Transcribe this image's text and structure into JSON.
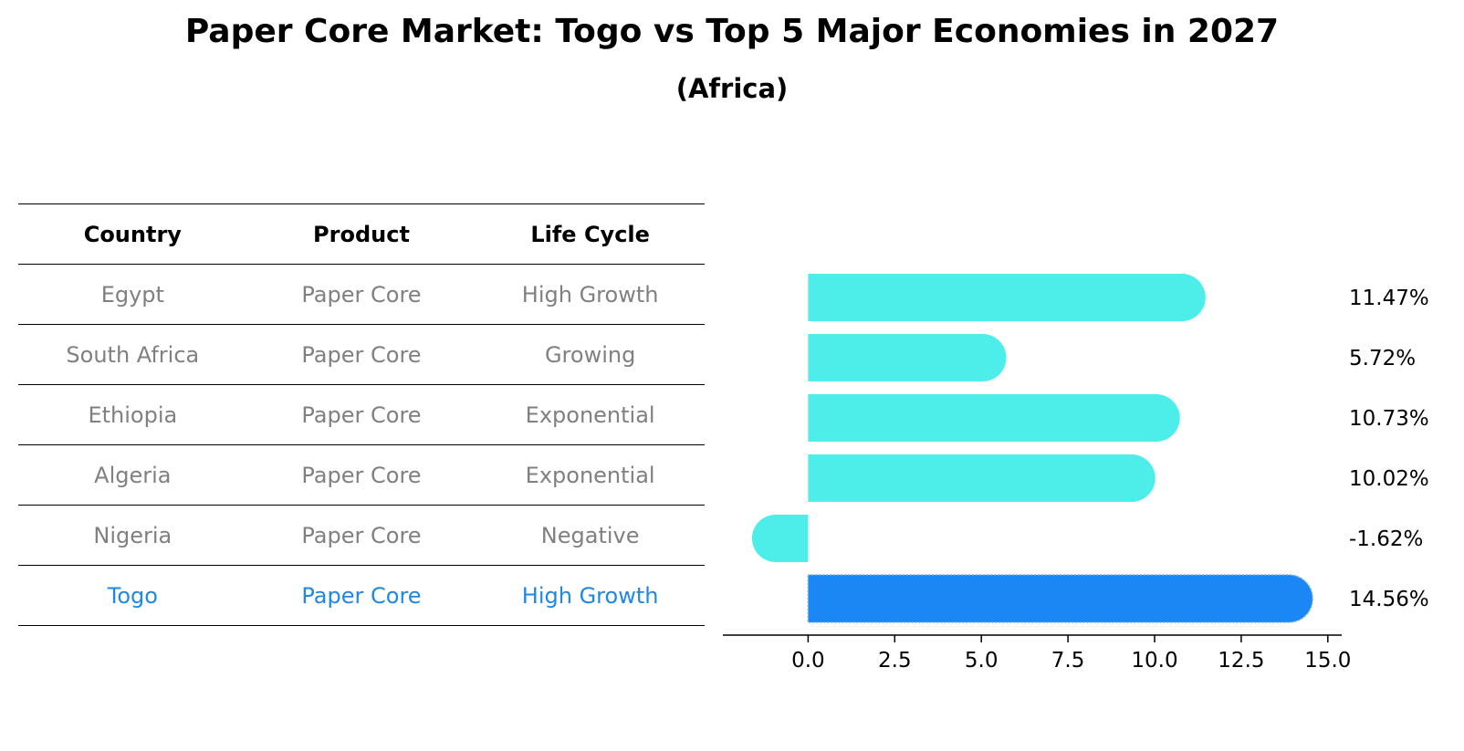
{
  "title": "Paper Core Market: Togo vs Top 5 Major Economies in 2027",
  "subtitle": "(Africa)",
  "table": {
    "headers": [
      "Country",
      "Product",
      "Life Cycle"
    ],
    "rows": [
      {
        "country": "Egypt",
        "product": "Paper Core",
        "life_cycle": "High Growth"
      },
      {
        "country": "South Africa",
        "product": "Paper Core",
        "life_cycle": "Growing"
      },
      {
        "country": "Ethiopia",
        "product": "Paper Core",
        "life_cycle": "Exponential"
      },
      {
        "country": "Algeria",
        "product": "Paper Core",
        "life_cycle": "Exponential"
      },
      {
        "country": "Nigeria",
        "product": "Paper Core",
        "life_cycle": "Negative"
      },
      {
        "country": "Togo",
        "product": "Paper Core",
        "life_cycle": "High Growth"
      }
    ]
  },
  "colors": {
    "bar": "#4deee9",
    "highlight_bar": "#1a87f5",
    "muted_text": "#808080",
    "highlight_text": "#1e88e5"
  },
  "chart_data": {
    "type": "bar",
    "orientation": "horizontal",
    "title": "Paper Core Market: Togo vs Top 5 Major Economies in 2027",
    "subtitle": "(Africa)",
    "categories": [
      "Egypt",
      "South Africa",
      "Ethiopia",
      "Algeria",
      "Nigeria",
      "Togo"
    ],
    "values": [
      11.47,
      5.72,
      10.73,
      10.02,
      -1.62,
      14.56
    ],
    "value_labels": [
      "11.47%",
      "5.72%",
      "10.73%",
      "10.02%",
      "-1.62%",
      "14.56%"
    ],
    "highlight": "Togo",
    "xlim": [
      -2.46,
      15.4
    ],
    "xticks": [
      0.0,
      2.5,
      5.0,
      7.5,
      10.0,
      12.5,
      15.0
    ],
    "xtick_labels": [
      "0.0",
      "2.5",
      "5.0",
      "7.5",
      "10.0",
      "12.5",
      "15.0"
    ],
    "xlabel": "",
    "ylabel": "",
    "grid": false
  }
}
